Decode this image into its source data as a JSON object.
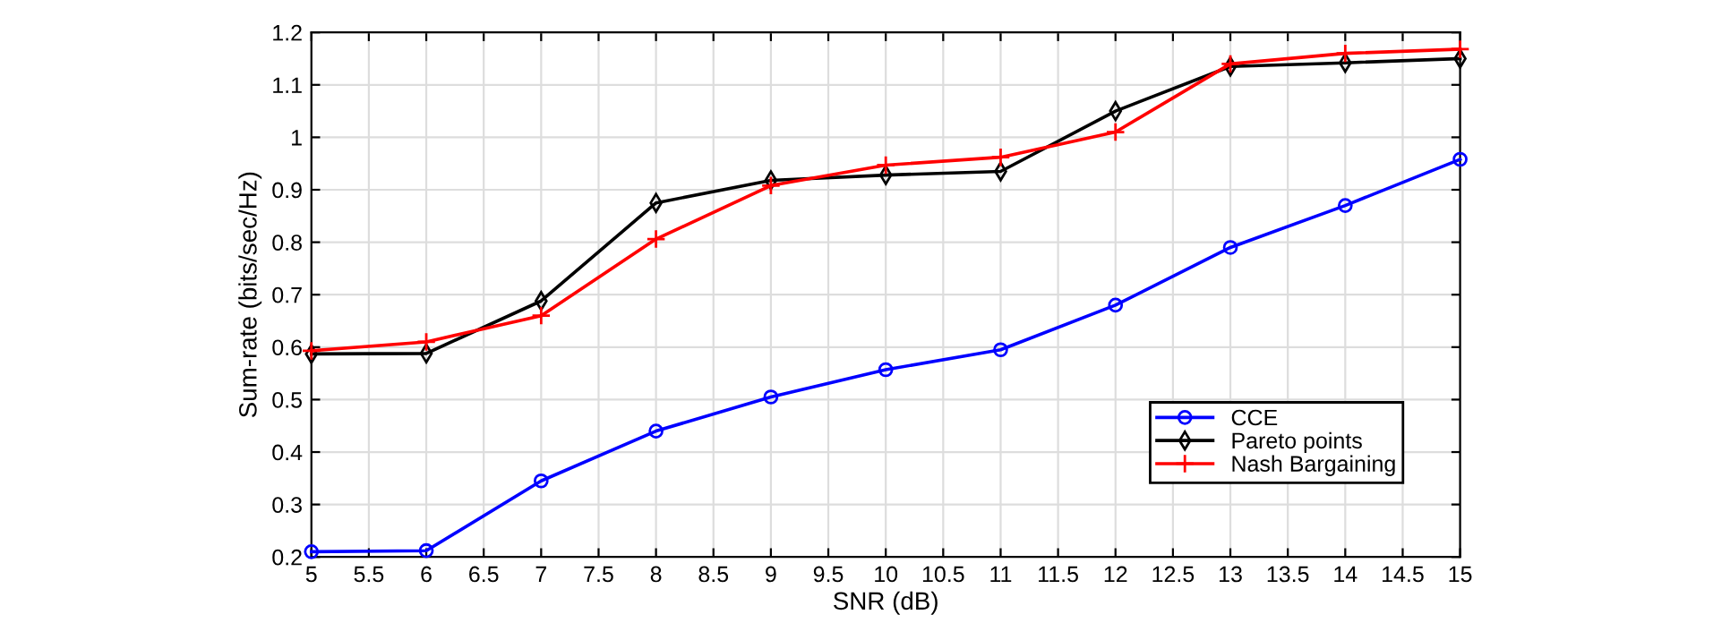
{
  "chart_data": {
    "type": "line",
    "xlabel": "SNR (dB)",
    "ylabel": "Sum-rate (bits/sec/Hz)",
    "x": [
      5,
      6,
      7,
      8,
      9,
      10,
      11,
      12,
      13,
      14,
      15
    ],
    "series": [
      {
        "name": "CCE",
        "color": "#0000ff",
        "marker": "circle",
        "values": [
          0.21,
          0.212,
          0.345,
          0.44,
          0.505,
          0.557,
          0.595,
          0.68,
          0.79,
          0.87,
          0.958
        ]
      },
      {
        "name": "Pareto points",
        "color": "#000000",
        "marker": "diamond",
        "values": [
          0.587,
          0.588,
          0.688,
          0.875,
          0.918,
          0.928,
          0.935,
          1.05,
          1.135,
          1.142,
          1.15
        ]
      },
      {
        "name": "Nash Bargaining",
        "color": "#ff0000",
        "marker": "cross",
        "values": [
          0.593,
          0.61,
          0.66,
          0.806,
          0.908,
          0.947,
          0.962,
          1.01,
          1.14,
          1.16,
          1.168
        ]
      }
    ],
    "xlim": [
      5,
      15
    ],
    "xticks": [
      5,
      5.5,
      6,
      6.5,
      7,
      7.5,
      8,
      8.5,
      9,
      9.5,
      10,
      10.5,
      11,
      11.5,
      12,
      12.5,
      13,
      13.5,
      14,
      14.5,
      15
    ],
    "ylim": [
      0.2,
      1.2
    ],
    "yticks": [
      0.2,
      0.3,
      0.4,
      0.5,
      0.6,
      0.7,
      0.8,
      0.9,
      1,
      1.1,
      1.2
    ],
    "grid": true,
    "legend": "bottom right",
    "line_style": "solid"
  }
}
